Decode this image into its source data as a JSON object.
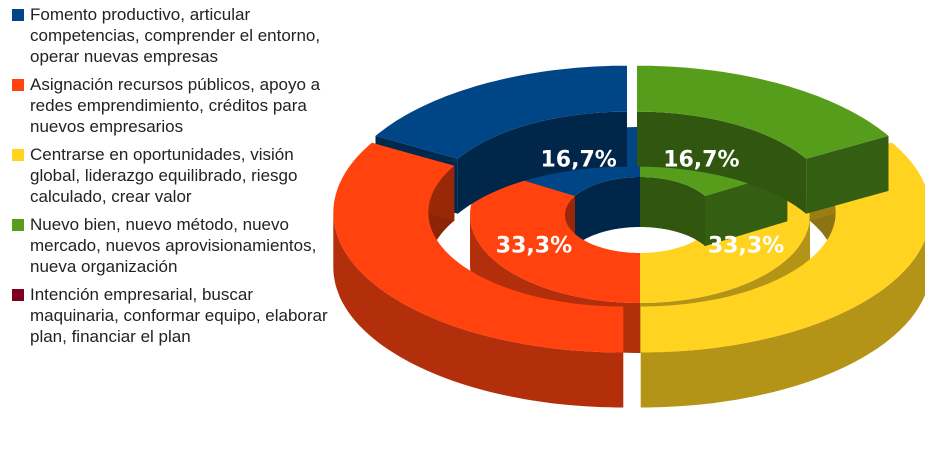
{
  "chart_data": {
    "type": "donut",
    "categories": [
      "Fomento productivo, articular competencias, comprender el entorno, operar nuevas empresas",
      "Asignación recursos públicos, apoyo a redes emprendimiento, créditos para nuevos empresarios",
      "Centrarse en oportunidades, visión global, liderazgo equilibrado, riesgo calculado, crear valor",
      "Nuevo bien, nuevo método, nuevo mercado, nuevos aprovisionamientos, nueva organización",
      "Intención empresarial, buscar maquinaria, conformar equipo, elaborar plan, financiar el plan"
    ],
    "colors": [
      "#004586",
      "#ff420e",
      "#ffd320",
      "#579d1c",
      "#7e0021"
    ],
    "series": [
      {
        "values": [
          16.7,
          33.3,
          33.3,
          16.7,
          0
        ],
        "value_labels": [
          "16,7%",
          "33,3%",
          "33,3%",
          "16,7%",
          null
        ]
      },
      {
        "values": [
          16.7,
          33.3,
          33.3,
          16.7,
          0
        ]
      }
    ]
  }
}
